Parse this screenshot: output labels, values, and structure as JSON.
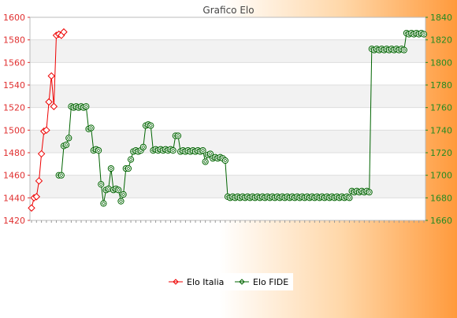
{
  "chart_data": {
    "type": "line",
    "title": "Grafico Elo",
    "xlabel": "",
    "ylabel": "",
    "grid": true,
    "legend_position": "bottom-center",
    "y_left": {
      "min": 1420,
      "max": 1600,
      "ticks": [
        1420,
        1440,
        1460,
        1480,
        1500,
        1520,
        1540,
        1560,
        1580,
        1600
      ],
      "color": "#e03030"
    },
    "y_right": {
      "min": 1660,
      "max": 1840,
      "ticks": [
        1660,
        1680,
        1700,
        1720,
        1740,
        1760,
        1780,
        1800,
        1820,
        1840
      ],
      "color": "#228b22"
    },
    "series": [
      {
        "name": "Elo Italia",
        "axis": "left",
        "color": "#ee0000",
        "values": [
          1431,
          1440,
          1441,
          1455,
          1479,
          1499,
          1500,
          1525,
          1548,
          1521,
          1584,
          1585,
          1584,
          1587
        ]
      },
      {
        "name": "Elo FIDE",
        "axis": "right",
        "color": "#006400",
        "start_index": 11,
        "values": [
          1700,
          1700,
          1726,
          1727,
          1733,
          1761,
          1760,
          1761,
          1760,
          1761,
          1760,
          1761,
          1741,
          1742,
          1722,
          1723,
          1722,
          1692,
          1675,
          1687,
          1688,
          1706,
          1687,
          1688,
          1687,
          1677,
          1683,
          1706,
          1706,
          1714,
          1721,
          1722,
          1721,
          1722,
          1725,
          1744,
          1745,
          1744,
          1722,
          1723,
          1722,
          1723,
          1722,
          1723,
          1722,
          1723,
          1722,
          1735,
          1735,
          1721,
          1722,
          1721,
          1722,
          1721,
          1722,
          1721,
          1722,
          1721,
          1722,
          1712,
          1718,
          1719,
          1715,
          1716,
          1715,
          1716,
          1715,
          1713,
          1681,
          1680,
          1681,
          1680,
          1681,
          1680,
          1681,
          1680,
          1681,
          1680,
          1681,
          1680,
          1681,
          1680,
          1681,
          1680,
          1681,
          1680,
          1681,
          1680,
          1681,
          1680,
          1681,
          1680,
          1681,
          1680,
          1681,
          1680,
          1681,
          1680,
          1681,
          1680,
          1681,
          1680,
          1681,
          1680,
          1681,
          1680,
          1681,
          1680,
          1681,
          1680,
          1681,
          1680,
          1681,
          1680,
          1681,
          1680,
          1681,
          1680,
          1686,
          1685,
          1686,
          1685,
          1686,
          1685,
          1686,
          1685,
          1812,
          1811,
          1812,
          1811,
          1812,
          1811,
          1812,
          1811,
          1812,
          1811,
          1812,
          1811,
          1812,
          1811,
          1826,
          1825,
          1826,
          1825,
          1826,
          1825,
          1826,
          1825
        ]
      }
    ]
  }
}
